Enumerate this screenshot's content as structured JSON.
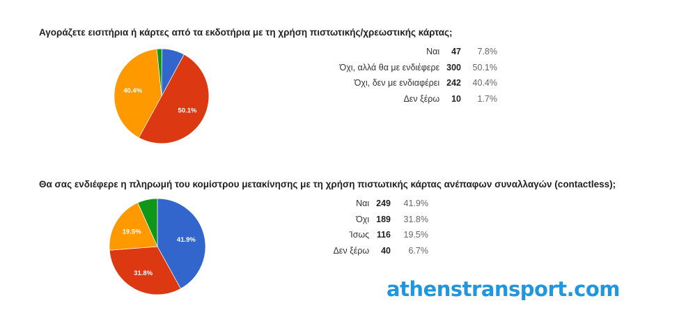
{
  "colors": {
    "blue": "#3366cc",
    "red": "#dc3912",
    "orange": "#ff9900",
    "green": "#109618",
    "watermark": "#1e96e0"
  },
  "watermark": "athenstransport.com",
  "chart_data": [
    {
      "type": "pie",
      "title": "Αγοράζετε εισιτήρια ή κάρτες από τα εκδοτήρια με τη χρήση πιστωτικής/χρεωστικής κάρτας;",
      "start_angle_deg": 89.7,
      "slices": [
        {
          "label": "Ναι",
          "count": 47,
          "percent": "7.8%",
          "value": 7.8,
          "color": "#3366cc"
        },
        {
          "label": "Όχι, αλλά θα με ενδιέφερε",
          "count": 300,
          "percent": "50.1%",
          "value": 50.1,
          "color": "#dc3912"
        },
        {
          "label": "Όχι, δεν με ενδιαφέρει",
          "count": 242,
          "percent": "40.4%",
          "value": 40.4,
          "color": "#ff9900"
        },
        {
          "label": "Δεν ξέρω",
          "count": 10,
          "percent": "1.7%",
          "value": 1.7,
          "color": "#109618"
        }
      ]
    },
    {
      "type": "pie",
      "title": "Θα σας ενδιέφερε η πληρωμή του κομίστρου μετακίνησης με τη χρήση πιστωτικής κάρτας ανέπαφων συναλλαγών (contactless);",
      "start_angle_deg": 90,
      "slices": [
        {
          "label": "Ναι",
          "count": 249,
          "percent": "41.9%",
          "value": 41.9,
          "color": "#3366cc"
        },
        {
          "label": "Όχι",
          "count": 189,
          "percent": "31.8%",
          "value": 31.8,
          "color": "#dc3912"
        },
        {
          "label": "Ίσως",
          "count": 116,
          "percent": "19.5%",
          "value": 19.5,
          "color": "#ff9900"
        },
        {
          "label": "Δεν ξέρω",
          "count": 40,
          "percent": "6.7%",
          "value": 6.7,
          "color": "#109618"
        }
      ]
    }
  ]
}
